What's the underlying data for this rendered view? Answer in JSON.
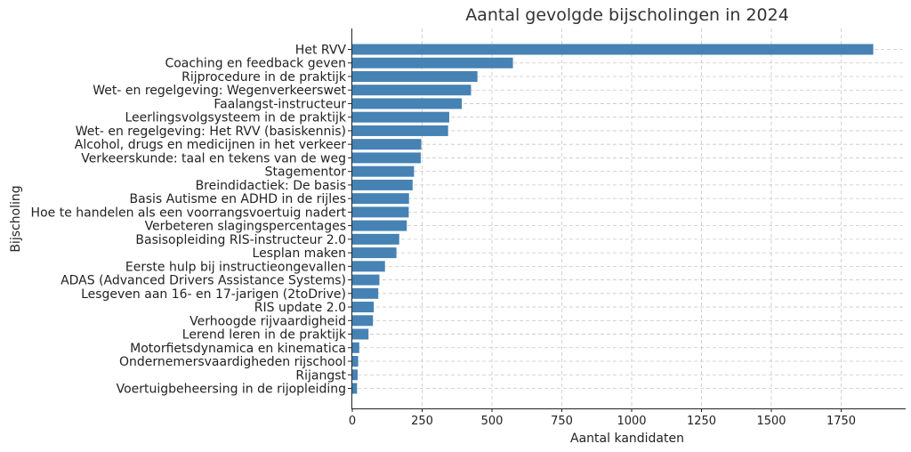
{
  "chart_data": {
    "type": "bar",
    "orientation": "horizontal",
    "title": "Aantal gevolgde bijscholingen in 2024",
    "xlabel": "Aantal kandidaten",
    "ylabel": "Bijscholing",
    "xlim": [
      0,
      1900
    ],
    "xticks": [
      0,
      250,
      500,
      750,
      1000,
      1250,
      1500,
      1750
    ],
    "grid": true,
    "bar_color": "#4682b4",
    "categories": [
      "Het RVV",
      "Coaching en feedback geven",
      "Rijprocedure in de praktijk",
      "Wet- en regelgeving: Wegenverkeerswet",
      "Faalangst-instructeur",
      "Leerlingsvolgsysteem in de praktijk",
      "Wet- en regelgeving: Het RVV (basiskennis)",
      "Alcohol, drugs en medicijnen in het verkeer",
      "Verkeerskunde: taal en tekens van de weg",
      "Stagementor",
      "Breindidactiek: De basis",
      "Basis Autisme en ADHD in de rijles",
      "Hoe te handelen als een voorrangsvoertuig nadert",
      "Verbeteren slagingspercentages",
      "Basisopleiding RIS-instructeur 2.0",
      "Lesplan maken",
      "Eerste hulp bij instructieongevallen",
      "ADAS (Advanced Drivers Assistance Systems)",
      "Lesgeven aan 16- en 17-jarigen (2toDrive)",
      "RIS update 2.0",
      "Verhoogde rijvaardigheid",
      "Lerend leren in de praktijk",
      "Motorfietsdynamica en kinematica",
      "Ondernemersvaardigheden rijschool",
      "Rijangst",
      "Voertuigbeheersing in de rijopleiding"
    ],
    "values": [
      1865,
      575,
      448,
      425,
      392,
      347,
      343,
      247,
      245,
      221,
      216,
      203,
      202,
      195,
      168,
      158,
      117,
      97,
      93,
      77,
      74,
      58,
      25,
      21,
      19,
      17
    ]
  }
}
